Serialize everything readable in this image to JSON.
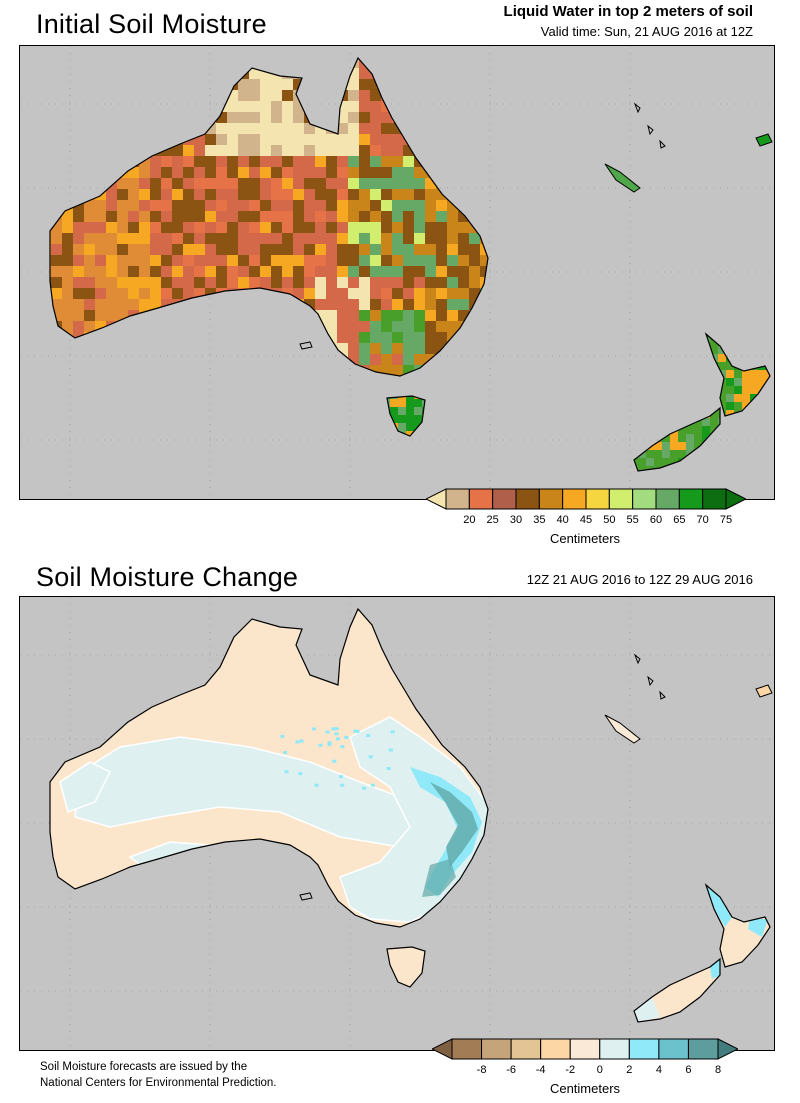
{
  "panel1": {
    "title": "Initial Soil Moisture",
    "header_title": "Liquid Water in top 2 meters of soil",
    "valid_time": "Valid time: Sun, 21 AUG 2016 at 12Z",
    "colorbar": {
      "colors": [
        "#d2b48c",
        "#e67348",
        "#b0604a",
        "#8b5412",
        "#c9841a",
        "#f7a823",
        "#f5d540",
        "#d2ee6e",
        "#a2dc7e",
        "#66a866",
        "#159a1b",
        "#0c6e10"
      ],
      "ticks": [
        "20",
        "25",
        "30",
        "35",
        "40",
        "45",
        "50",
        "55",
        "60",
        "65",
        "70",
        "75"
      ],
      "under_color": "#f4e4b0",
      "over_color": "#0c6e10",
      "unit": "Centimeters"
    },
    "region_colors": {
      "north": "#f4e4b0",
      "west": "#e08b36",
      "center": "#d4694a",
      "dark": "#8b5412",
      "east": "#c9841a",
      "green": "#66a866",
      "nz": "#48a02a",
      "tas": "#159a1b"
    }
  },
  "panel2": {
    "title": "Soil Moisture Change",
    "period": "12Z 21 AUG 2016 to 12Z 29 AUG 2016",
    "colorbar": {
      "colors": [
        "#a17c55",
        "#c6a47a",
        "#e2c495",
        "#fcd7a5",
        "#fbe9d7",
        "#dff0f0",
        "#8fe9f8",
        "#6cc2cc",
        "#5d9d9d"
      ],
      "ticks": [
        "-8",
        "-6",
        "-4",
        "-2",
        "0",
        "2",
        "4",
        "6",
        "8"
      ],
      "under_color": "#806042",
      "over_color": "#427c7c",
      "unit": "Centimeters"
    },
    "region_colors": {
      "base": "#fbe6cc",
      "light_blue": "#dff0f0",
      "blue": "#8fe9f8",
      "teal": "#5fa8a8"
    }
  },
  "footer": {
    "line1": "Soil Moisture forecasts are issued by the",
    "line2": "National Centers for Environmental Prediction."
  }
}
